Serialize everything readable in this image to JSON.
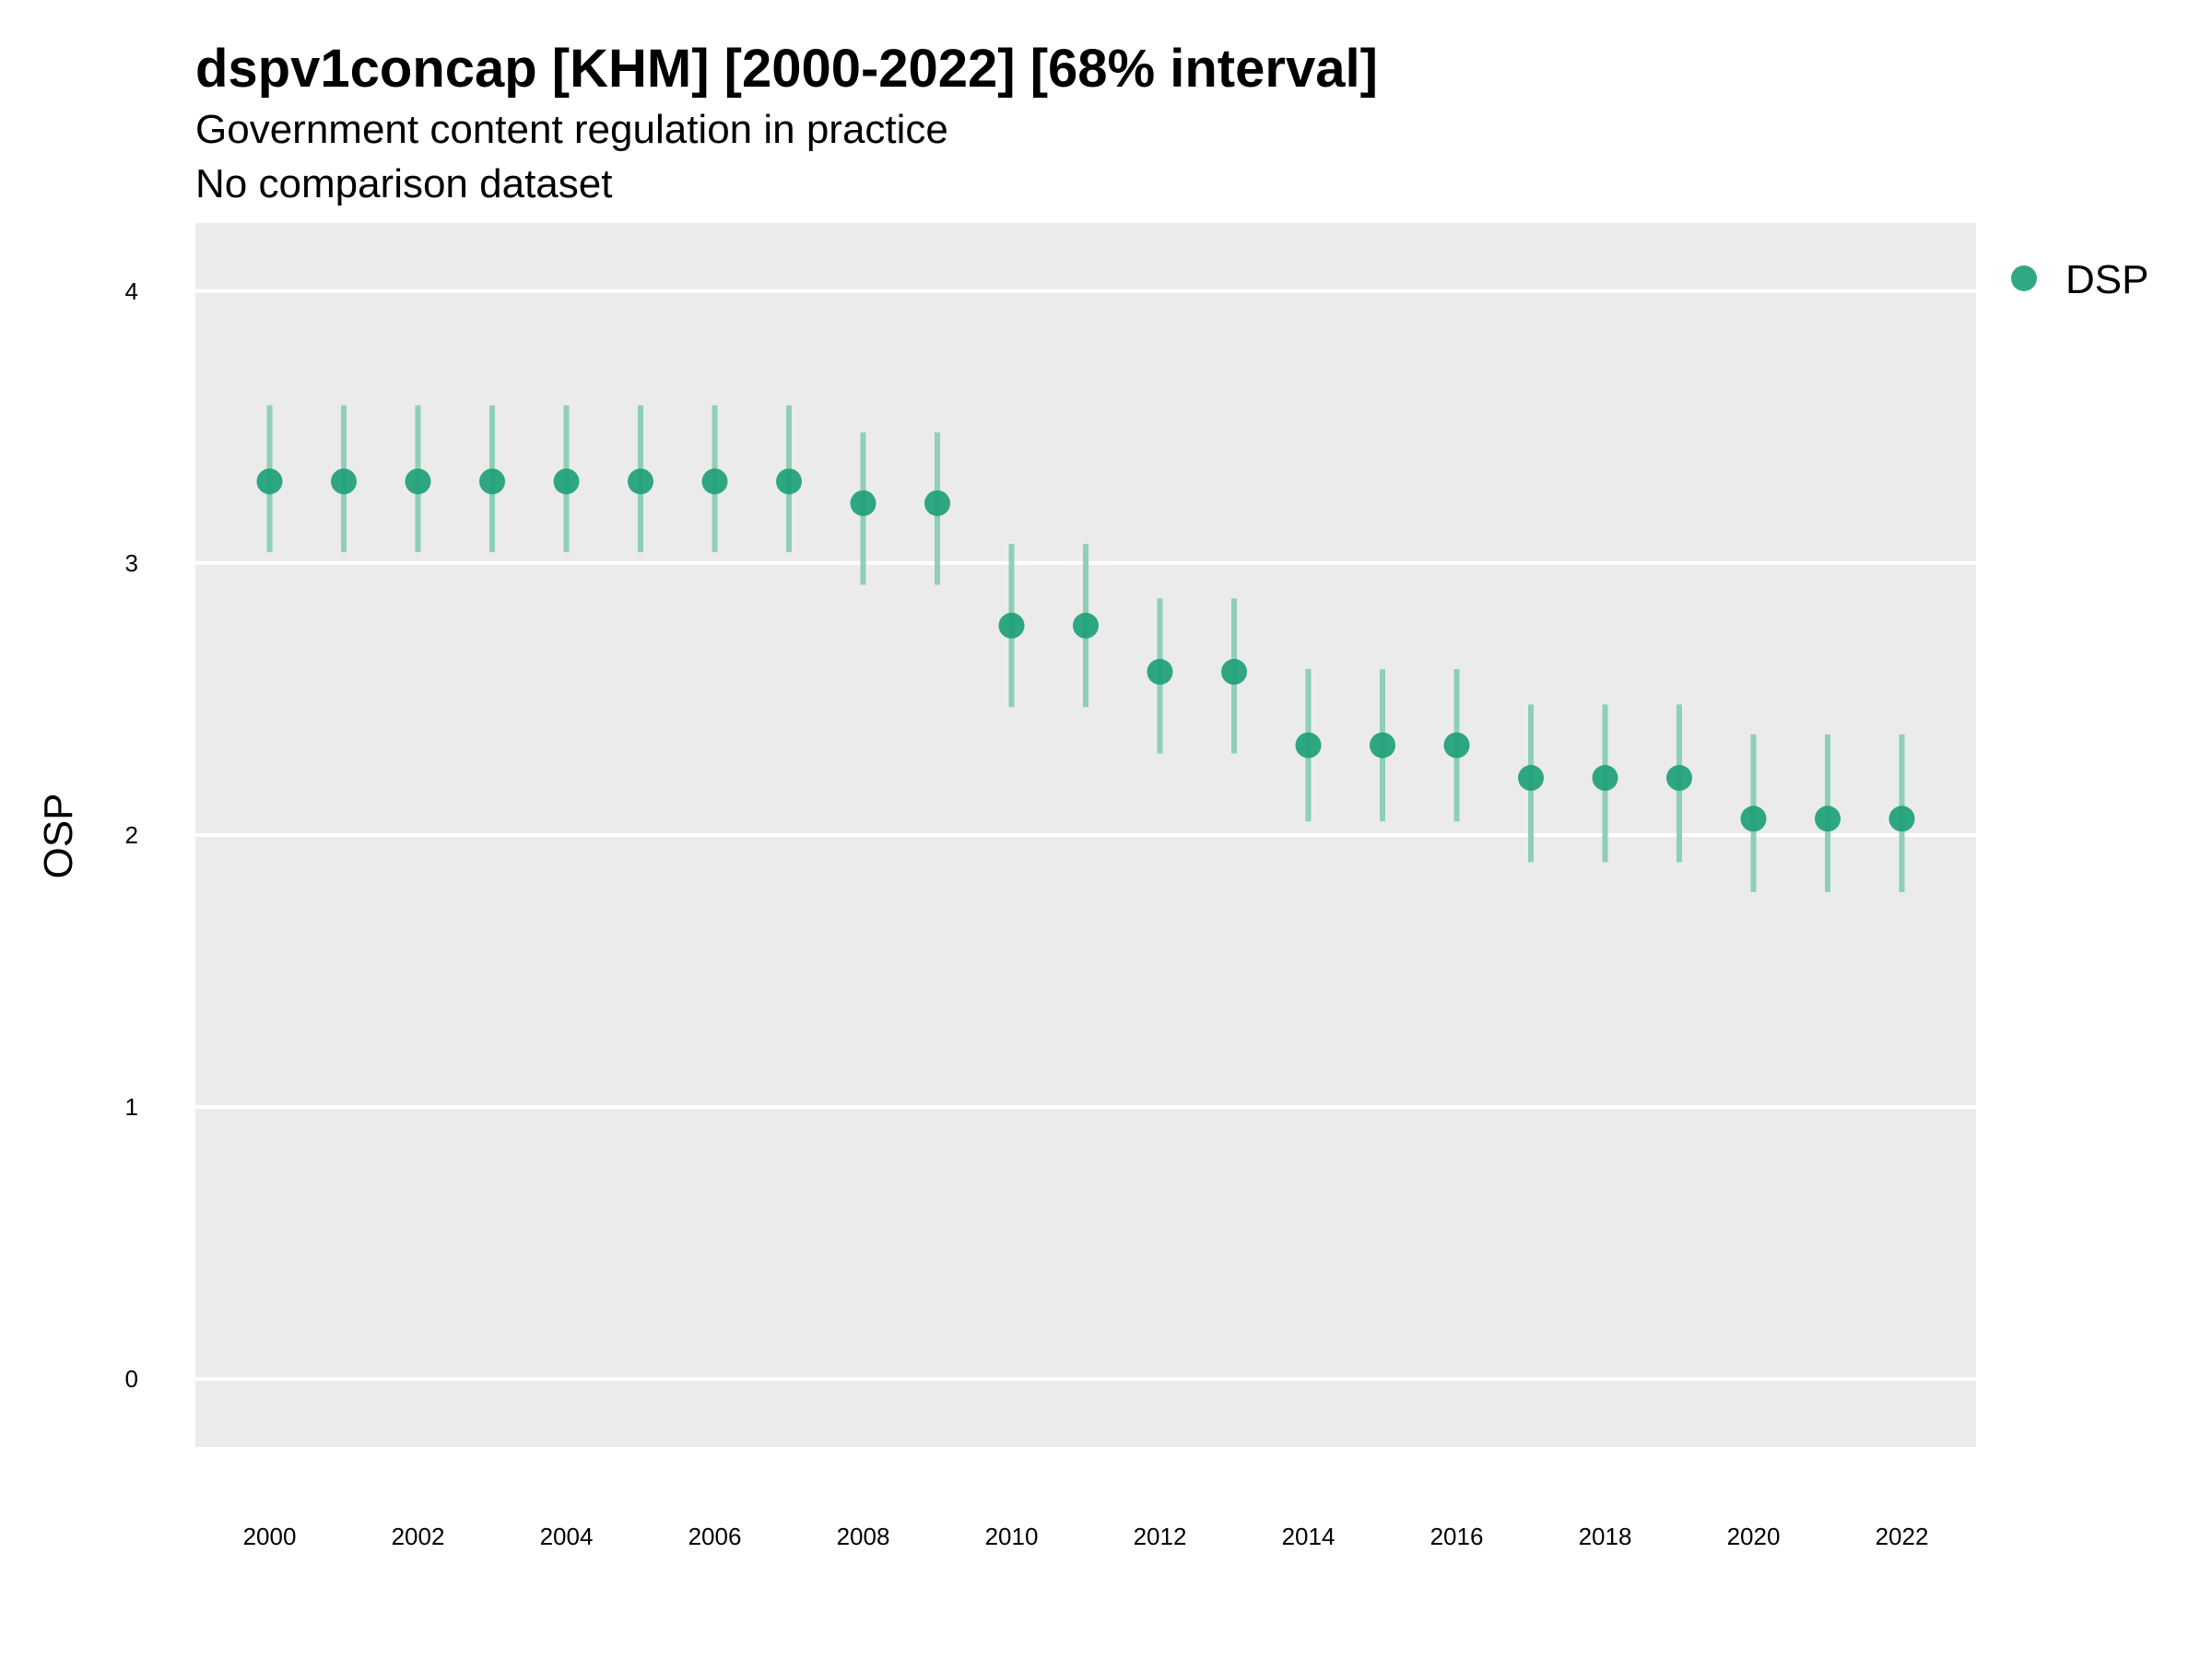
{
  "chart_data": {
    "type": "scatter",
    "title": "dspv1concap [KHM] [2000-2022] [68% interval]",
    "subtitle": "Government content regulation in practice",
    "subtitle2": "No comparison dataset",
    "xlabel": "",
    "ylabel": "OSP",
    "ylim": [
      -0.25,
      4.25
    ],
    "xlim": [
      1999.0,
      2023.0
    ],
    "y_ticks": [
      0,
      1,
      2,
      3,
      4
    ],
    "x_ticks": [
      2000,
      2002,
      2004,
      2006,
      2008,
      2010,
      2012,
      2014,
      2016,
      2018,
      2020,
      2022
    ],
    "grid": true,
    "legend_position": "top-right",
    "series": [
      {
        "name": "DSP",
        "color": "#1b9e77",
        "interval_color": "#8ecfb7",
        "x": [
          2000,
          2001,
          2002,
          2003,
          2004,
          2005,
          2006,
          2007,
          2008,
          2009,
          2010,
          2011,
          2012,
          2013,
          2014,
          2015,
          2016,
          2017,
          2018,
          2019,
          2020,
          2021,
          2022
        ],
        "y": [
          3.3,
          3.3,
          3.3,
          3.3,
          3.3,
          3.3,
          3.3,
          3.3,
          3.22,
          3.22,
          2.77,
          2.77,
          2.6,
          2.6,
          2.33,
          2.33,
          2.33,
          2.21,
          2.21,
          2.21,
          2.06,
          2.06,
          2.06
        ],
        "lower": [
          3.04,
          3.04,
          3.04,
          3.04,
          3.04,
          3.04,
          3.04,
          3.04,
          2.92,
          2.92,
          2.47,
          2.47,
          2.3,
          2.3,
          2.05,
          2.05,
          2.05,
          1.9,
          1.9,
          1.9,
          1.79,
          1.79,
          1.79
        ],
        "upper": [
          3.58,
          3.58,
          3.58,
          3.58,
          3.58,
          3.58,
          3.58,
          3.58,
          3.48,
          3.48,
          3.07,
          3.07,
          2.87,
          2.87,
          2.61,
          2.61,
          2.61,
          2.48,
          2.48,
          2.48,
          2.37,
          2.37,
          2.37
        ]
      }
    ]
  }
}
